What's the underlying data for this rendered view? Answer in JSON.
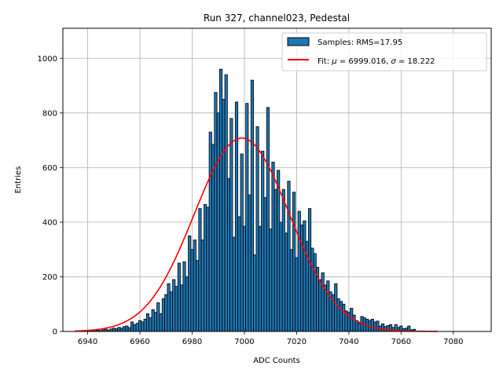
{
  "chart_data": {
    "type": "bar",
    "title": "Run 327, channel023, Pedestal",
    "xlabel": "ADC Counts",
    "ylabel": "Entries",
    "xlim": [
      6930,
      6934,
      7094
    ],
    "ylim": [
      0,
      1110
    ],
    "xticks": [
      6940,
      6960,
      6980,
      7000,
      7020,
      7040,
      7060,
      7080
    ],
    "yticks": [
      0,
      200,
      400,
      600,
      800,
      1000
    ],
    "grid": true,
    "legend_position": "top-right",
    "bin_width": 1,
    "bins": [
      [
        6940,
        2
      ],
      [
        6941,
        3
      ],
      [
        6942,
        2
      ],
      [
        6943,
        5
      ],
      [
        6944,
        4
      ],
      [
        6945,
        3
      ],
      [
        6946,
        6
      ],
      [
        6947,
        8
      ],
      [
        6948,
        5
      ],
      [
        6949,
        9
      ],
      [
        6950,
        12
      ],
      [
        6951,
        10
      ],
      [
        6952,
        15
      ],
      [
        6953,
        12
      ],
      [
        6954,
        18
      ],
      [
        6955,
        20
      ],
      [
        6956,
        14
      ],
      [
        6957,
        35
      ],
      [
        6958,
        25
      ],
      [
        6959,
        30
      ],
      [
        6960,
        40
      ],
      [
        6961,
        35
      ],
      [
        6962,
        45
      ],
      [
        6963,
        65
      ],
      [
        6964,
        50
      ],
      [
        6965,
        80
      ],
      [
        6966,
        70
      ],
      [
        6967,
        105
      ],
      [
        6968,
        65
      ],
      [
        6969,
        120
      ],
      [
        6970,
        135
      ],
      [
        6971,
        175
      ],
      [
        6972,
        145
      ],
      [
        6973,
        190
      ],
      [
        6974,
        165
      ],
      [
        6975,
        250
      ],
      [
        6976,
        170
      ],
      [
        6977,
        255
      ],
      [
        6978,
        200
      ],
      [
        6979,
        350
      ],
      [
        6980,
        300
      ],
      [
        6981,
        335
      ],
      [
        6982,
        260
      ],
      [
        6983,
        450
      ],
      [
        6984,
        335
      ],
      [
        6985,
        465
      ],
      [
        6986,
        455
      ],
      [
        6987,
        730
      ],
      [
        6988,
        685
      ],
      [
        6989,
        875
      ],
      [
        6990,
        800
      ],
      [
        6991,
        960
      ],
      [
        6992,
        850
      ],
      [
        6993,
        940
      ],
      [
        6994,
        560
      ],
      [
        6995,
        780
      ],
      [
        6996,
        345
      ],
      [
        6997,
        840
      ],
      [
        6998,
        420
      ],
      [
        6999,
        650
      ],
      [
        7000,
        385
      ],
      [
        7001,
        835
      ],
      [
        7002,
        500
      ],
      [
        7003,
        920
      ],
      [
        7004,
        280
      ],
      [
        7005,
        750
      ],
      [
        7006,
        385
      ],
      [
        7007,
        660
      ],
      [
        7008,
        490
      ],
      [
        7009,
        820
      ],
      [
        7010,
        375
      ],
      [
        7011,
        620
      ],
      [
        7012,
        520
      ],
      [
        7013,
        590
      ],
      [
        7014,
        400
      ],
      [
        7015,
        520
      ],
      [
        7016,
        360
      ],
      [
        7017,
        550
      ],
      [
        7018,
        300
      ],
      [
        7019,
        510
      ],
      [
        7020,
        270
      ],
      [
        7021,
        440
      ],
      [
        7022,
        390
      ],
      [
        7023,
        405
      ],
      [
        7024,
        330
      ],
      [
        7025,
        450
      ],
      [
        7026,
        305
      ],
      [
        7027,
        285
      ],
      [
        7028,
        235
      ],
      [
        7029,
        190
      ],
      [
        7030,
        215
      ],
      [
        7031,
        170
      ],
      [
        7032,
        185
      ],
      [
        7033,
        145
      ],
      [
        7034,
        135
      ],
      [
        7035,
        175
      ],
      [
        7036,
        120
      ],
      [
        7037,
        110
      ],
      [
        7038,
        100
      ],
      [
        7039,
        75
      ],
      [
        7040,
        70
      ],
      [
        7041,
        85
      ],
      [
        7042,
        60
      ],
      [
        7043,
        40
      ],
      [
        7044,
        30
      ],
      [
        7045,
        55
      ],
      [
        7046,
        50
      ],
      [
        7047,
        45
      ],
      [
        7048,
        40
      ],
      [
        7049,
        45
      ],
      [
        7050,
        35
      ],
      [
        7051,
        38
      ],
      [
        7052,
        20
      ],
      [
        7053,
        28
      ],
      [
        7054,
        18
      ],
      [
        7055,
        22
      ],
      [
        7056,
        25
      ],
      [
        7057,
        15
      ],
      [
        7058,
        25
      ],
      [
        7059,
        15
      ],
      [
        7060,
        20
      ],
      [
        7061,
        10
      ],
      [
        7062,
        12
      ],
      [
        7063,
        20
      ],
      [
        7064,
        6
      ],
      [
        7065,
        8
      ]
    ],
    "fit": {
      "mu": 6999.016,
      "sigma": 18.222,
      "amplitude": 708,
      "x_range": [
        6935,
        7074
      ]
    },
    "legend": {
      "samples_label": "Samples: RMS=17.95",
      "fit_label_prefix": "Fit: ",
      "fit_label_mu": "μ",
      "fit_label_mid": " = 6999.016, ",
      "fit_label_sigma": "σ",
      "fit_label_suffix": " = 18.222"
    },
    "colors": {
      "bar_fill": "#1f77b4",
      "bar_edge": "#000000",
      "fit_line": "#ff0000",
      "grid": "#b0b0b0"
    }
  }
}
